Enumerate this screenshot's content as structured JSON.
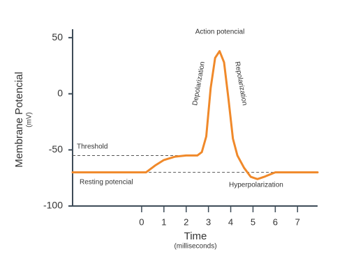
{
  "chart_data": {
    "type": "line",
    "xlabel": "Time",
    "xlabel_sub": "(milliseconds)",
    "ylabel": "Membrane Potencial",
    "ylabel_sub": "(mV)",
    "x": [
      -3.1,
      0.2,
      0.6,
      1.0,
      1.5,
      2.0,
      2.5,
      2.7,
      2.9,
      3.1,
      3.3,
      3.5,
      3.7,
      3.9,
      4.1,
      4.3,
      4.6,
      4.9,
      5.2,
      5.5,
      6.0,
      7.9
    ],
    "series": [
      {
        "name": "Membrane potential",
        "color": "#f0892a",
        "values": [
          -70,
          -70,
          -64,
          -59,
          -56,
          -55,
          -55,
          -52,
          -38,
          5,
          32,
          38,
          28,
          -5,
          -40,
          -55,
          -66,
          -74,
          -76,
          -74,
          -70,
          -70
        ]
      }
    ],
    "threshold": -55,
    "resting": -70,
    "annotations": [
      "Action potencial",
      "Depolarization",
      "Repolarization",
      "Threshold",
      "Resting potencial",
      "Hyperpolarization"
    ],
    "xlim": [
      -3.1,
      7.9
    ],
    "xticks": [
      0,
      1,
      2,
      3,
      4,
      5,
      6,
      7
    ],
    "ylim": [
      -100,
      60
    ],
    "yticks": [
      50,
      0,
      -50,
      -100
    ]
  }
}
